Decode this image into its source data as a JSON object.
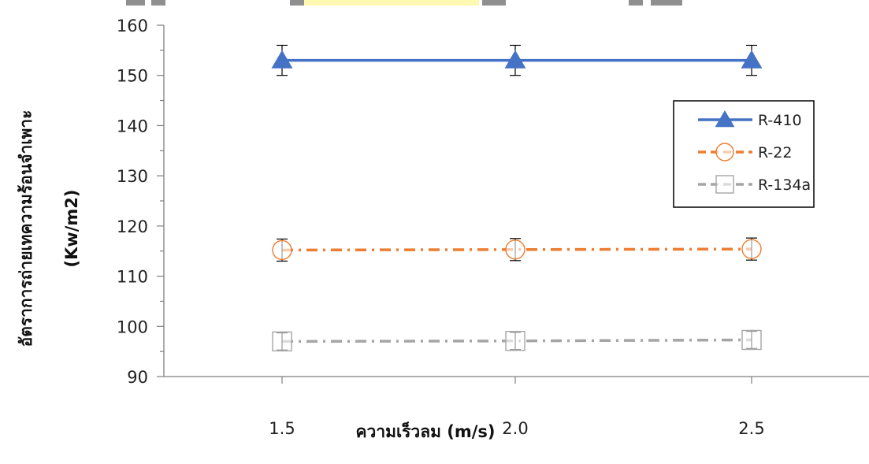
{
  "chart_data": {
    "type": "line",
    "xlabel": "ความเร็วลม (m/s)",
    "ylabel_lines": [
      "อัตราการถ่ายเทความร้อนจำเพาะ",
      "(Kw/m2)"
    ],
    "categories": [
      "1.5",
      "2.0",
      "2.5"
    ],
    "ylim": [
      90,
      160
    ],
    "yticks": [
      90,
      100,
      110,
      120,
      130,
      140,
      150,
      160
    ],
    "grid": false,
    "legend_position": "right",
    "series": [
      {
        "name": "R-410",
        "values": [
          153.0,
          153.0,
          153.0
        ],
        "error": 3.0,
        "color": "#4472C4",
        "marker": "triangle-filled",
        "line": "solid"
      },
      {
        "name": "R-22",
        "values": [
          115.2,
          115.3,
          115.4
        ],
        "error": 2.2,
        "color": "#ED7D31",
        "marker": "circle-open",
        "line": "dash-dot"
      },
      {
        "name": "R-134a",
        "values": [
          97.0,
          97.1,
          97.3
        ],
        "error": 1.7,
        "color": "#A5A5A5",
        "marker": "square-open",
        "line": "dash-dot"
      }
    ]
  }
}
